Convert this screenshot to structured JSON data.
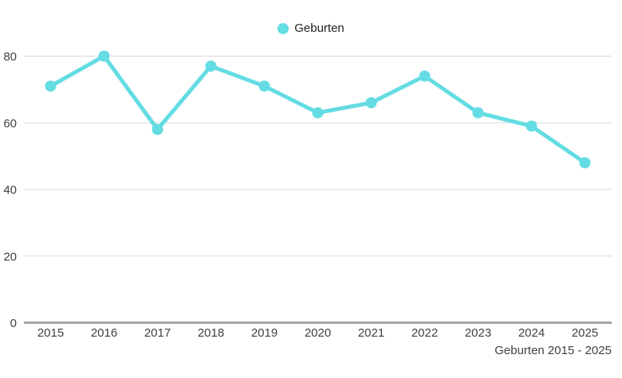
{
  "chart_data": {
    "type": "line",
    "title": "",
    "legend": [
      "Geburten"
    ],
    "legend_position": "top-center",
    "caption": "Geburten 2015 - 2025",
    "categories": [
      "2015",
      "2016",
      "2017",
      "2018",
      "2019",
      "2020",
      "2021",
      "2022",
      "2023",
      "2024",
      "2025"
    ],
    "series": [
      {
        "name": "Geburten",
        "values": [
          71,
          80,
          58,
          77,
          71,
          63,
          66,
          74,
          63,
          59,
          48
        ]
      }
    ],
    "xlabel": "",
    "ylabel": "",
    "ylim": [
      0,
      80
    ],
    "yticks": [
      0,
      20,
      40,
      60,
      80
    ],
    "grid": true,
    "colors": {
      "line": "#64dce3",
      "gridline": "#d9d9d9",
      "axis": "#a6a6a6",
      "tick_text": "#404040",
      "legend_text": "#1f1f1f",
      "background": "#ffffff"
    }
  }
}
